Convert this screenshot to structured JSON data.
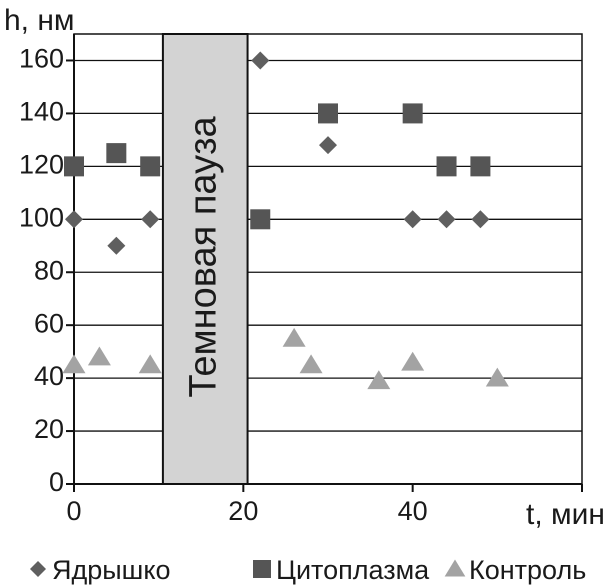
{
  "chart_data": {
    "type": "scatter",
    "ylabel": "h, нм",
    "xlabel": "t, мин",
    "xlim": [
      0,
      60
    ],
    "ylim": [
      0,
      170
    ],
    "x_ticks": [
      0,
      20,
      40
    ],
    "y_ticks": [
      0,
      20,
      40,
      60,
      80,
      100,
      120,
      140,
      160
    ],
    "grid": "horizontal",
    "legend_position": "bottom",
    "annotation": {
      "text": "Темновая пауза",
      "x_range": [
        10.5,
        20.5
      ]
    },
    "series": [
      {
        "name": "Ядрышко",
        "marker": "diamond",
        "color": "#5f5f5f",
        "points": [
          [
            0,
            100
          ],
          [
            5,
            90
          ],
          [
            9,
            100
          ],
          [
            22,
            160
          ],
          [
            30,
            128
          ],
          [
            40,
            100
          ],
          [
            44,
            100
          ],
          [
            48,
            100
          ]
        ]
      },
      {
        "name": "Цитоплазма",
        "marker": "square",
        "color": "#555555",
        "points": [
          [
            0,
            120
          ],
          [
            5,
            125
          ],
          [
            9,
            120
          ],
          [
            22,
            100
          ],
          [
            30,
            140
          ],
          [
            40,
            140
          ],
          [
            44,
            120
          ],
          [
            48,
            120
          ]
        ]
      },
      {
        "name": "Контроль",
        "marker": "triangle",
        "color": "#a3a3a3",
        "points": [
          [
            0,
            45
          ],
          [
            3,
            48
          ],
          [
            9,
            45
          ],
          [
            26,
            55
          ],
          [
            28,
            45
          ],
          [
            36,
            39
          ],
          [
            40,
            46
          ],
          [
            50,
            40
          ]
        ]
      }
    ]
  }
}
